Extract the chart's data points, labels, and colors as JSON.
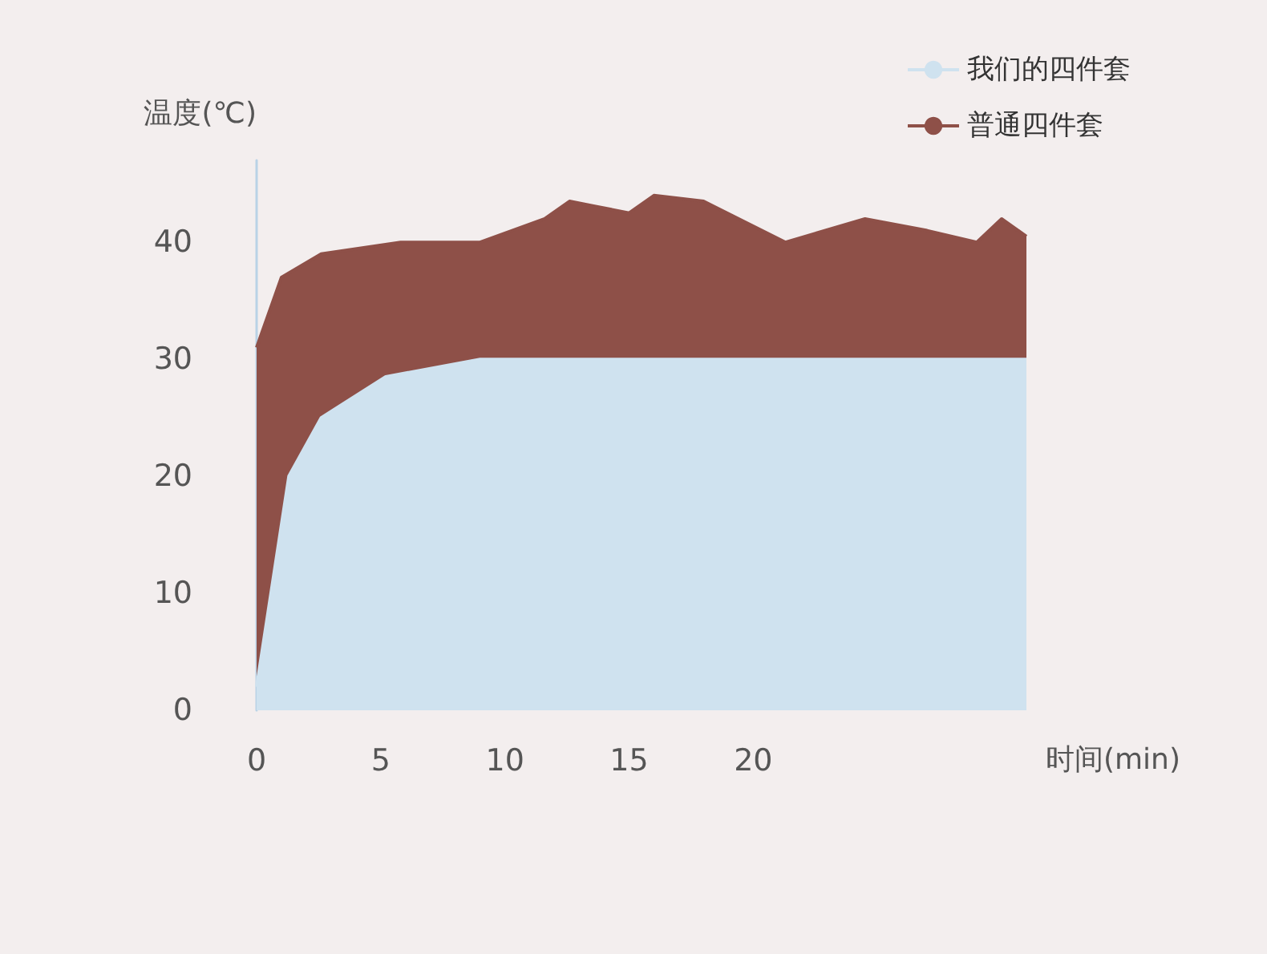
{
  "chart_data": {
    "type": "area",
    "xlabel": "时间(min)",
    "ylabel": "温度(℃)",
    "xlim": [
      0,
      31
    ],
    "xticks": [
      0,
      5,
      10,
      15,
      20
    ],
    "ylim": [
      0,
      47
    ],
    "yticks": [
      0,
      10,
      20,
      30,
      40
    ],
    "grid": false,
    "legend": "top right",
    "marker": "none",
    "series": [
      {
        "name": "普通四件套",
        "color": "#8e5048",
        "x": [
          0,
          1,
          2.6,
          5.8,
          9,
          11.6,
          12.6,
          15,
          16,
          18,
          21.3,
          24.5,
          27,
          29,
          30,
          31
        ],
        "values": [
          31,
          37,
          39,
          40,
          40,
          42,
          43.5,
          42.5,
          44,
          43.5,
          40,
          42,
          41,
          40,
          42,
          40.5
        ]
      },
      {
        "name": "我们的四件套",
        "color": "#cfe2ef",
        "x": [
          0,
          1.3,
          2.6,
          5.2,
          9,
          15,
          20,
          25,
          31
        ],
        "values": [
          2,
          20,
          25,
          28.5,
          30,
          30,
          30,
          30,
          30
        ]
      }
    ]
  }
}
